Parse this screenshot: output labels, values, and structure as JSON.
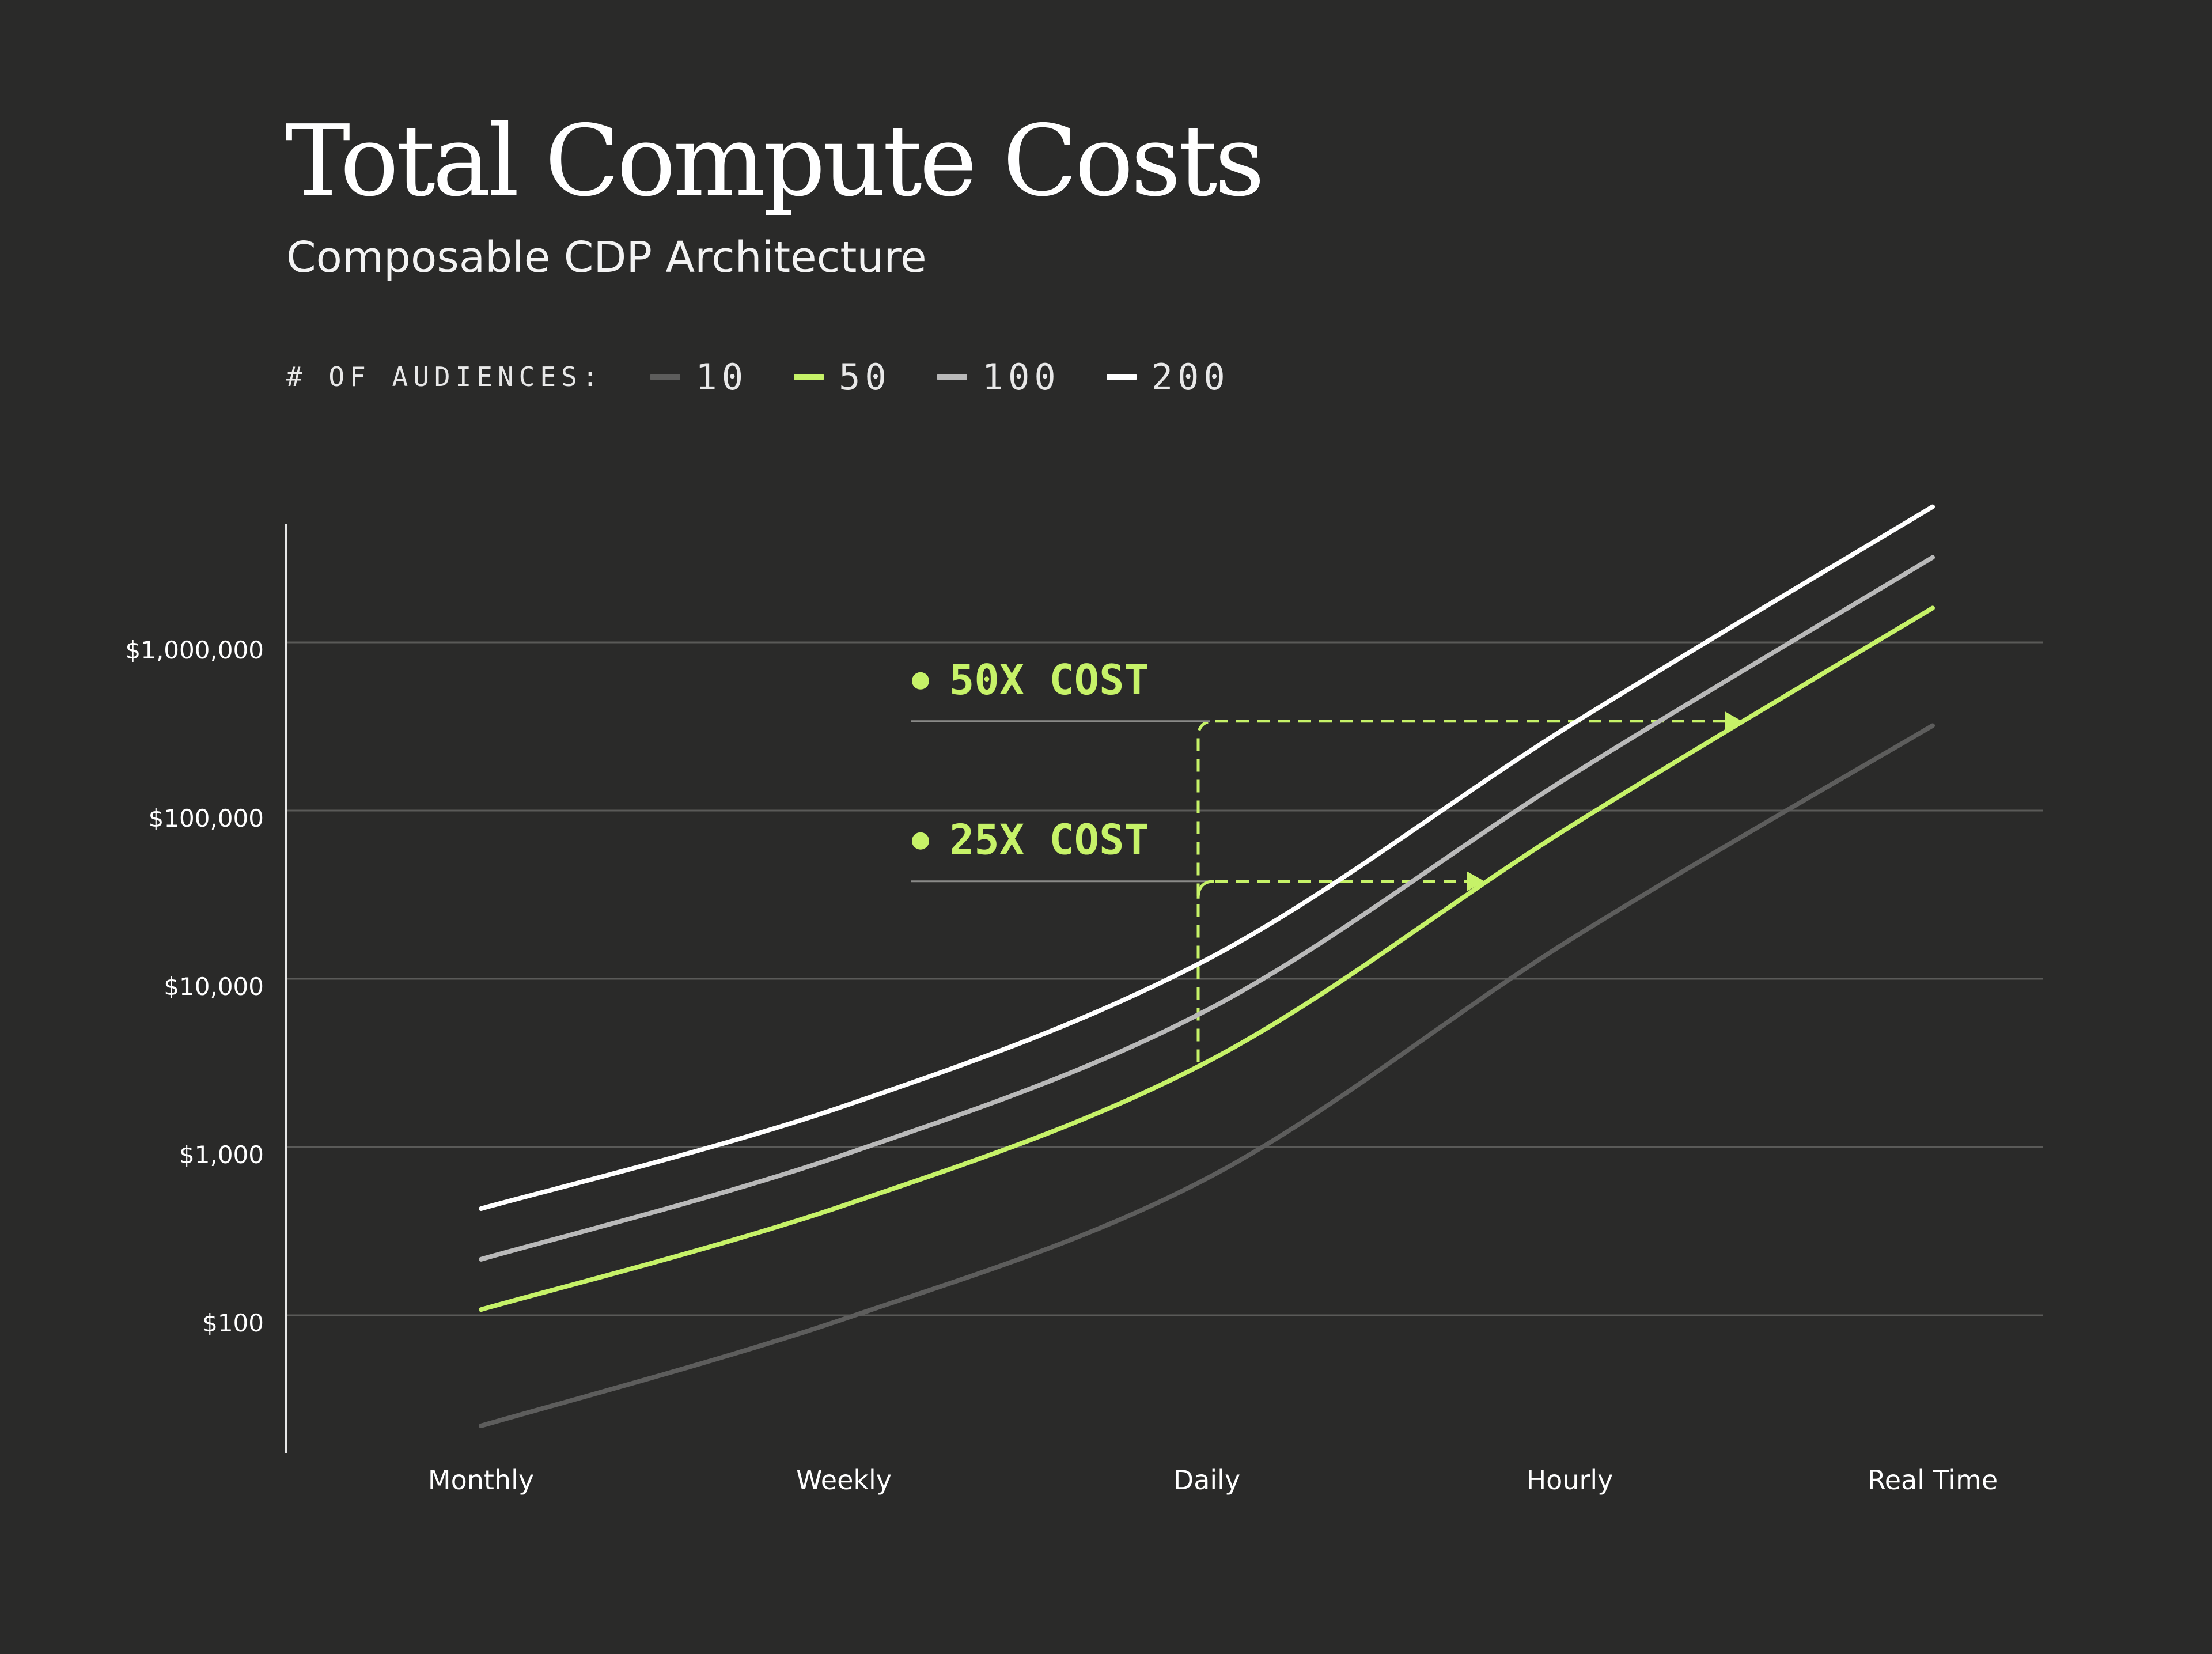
{
  "chart_data": {
    "type": "line",
    "title": "Total Compute Costs",
    "subtitle": "Composable CDP Architecture",
    "legend_title": "# OF AUDIENCES:",
    "categories": [
      "Monthly",
      "Weekly",
      "Daily",
      "Hourly",
      "Real Time"
    ],
    "y_scale": "log",
    "ylim": [
      12,
      6000000
    ],
    "y_ticks": [
      {
        "value": 100,
        "label": "$100"
      },
      {
        "value": 1000,
        "label": "$1,000"
      },
      {
        "value": 10000,
        "label": "$10,000"
      },
      {
        "value": 100000,
        "label": "$100,000"
      },
      {
        "value": 1000000,
        "label": "$1,000,000"
      }
    ],
    "grid": true,
    "legend_position": "top-left",
    "series": [
      {
        "name": "10",
        "color": "#5d5d5c",
        "values": [
          22,
          95,
          650,
          17000,
          320000
        ]
      },
      {
        "name": "50",
        "color": "#c6f268",
        "values": [
          108,
          450,
          3200,
          80000,
          1600000
        ]
      },
      {
        "name": "100",
        "color": "#b9b9b9",
        "values": [
          215,
          900,
          6500,
          160000,
          3200000
        ]
      },
      {
        "name": "200",
        "color": "#ffffff",
        "values": [
          430,
          1750,
          13000,
          320000,
          6400000
        ]
      }
    ],
    "annotations": [
      {
        "label": "50X COST",
        "value": 340000
      },
      {
        "label": "25X COST",
        "value": 38000
      }
    ]
  },
  "colors": {
    "background": "#2a2a29",
    "accent": "#c6f268",
    "grid": "#5a5a58",
    "text": "#ffffff"
  }
}
